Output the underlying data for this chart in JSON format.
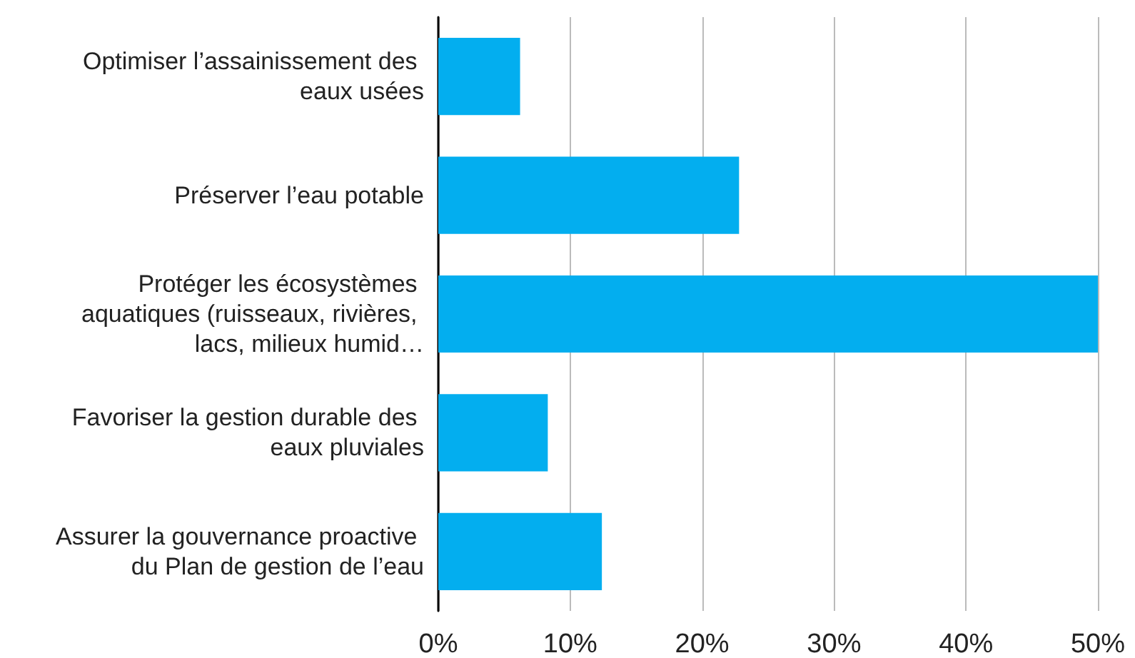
{
  "chart_data": {
    "type": "bar",
    "orientation": "horizontal",
    "categories": [
      "Optimiser l’assainissement des eaux usées",
      "Préserver l’eau potable",
      "Protéger les écosystèmes aquatiques (ruisseaux, rivières, lacs, milieux humid…",
      "Favoriser la gestion durable des eaux pluviales",
      "Assurer la gouvernance proactive du Plan de gestion de l’eau"
    ],
    "values": [
      6.2,
      22.8,
      50,
      8.3,
      12.4
    ],
    "color": "#03aeef",
    "xlim": [
      0,
      50
    ],
    "xticks": [
      {
        "value": 0,
        "label": "0%"
      },
      {
        "value": 10,
        "label": "10%"
      },
      {
        "value": 20,
        "label": "20%"
      },
      {
        "value": 30,
        "label": "30%"
      },
      {
        "value": 40,
        "label": "40%"
      },
      {
        "value": 50,
        "label": "50%"
      }
    ],
    "grid": "x"
  }
}
